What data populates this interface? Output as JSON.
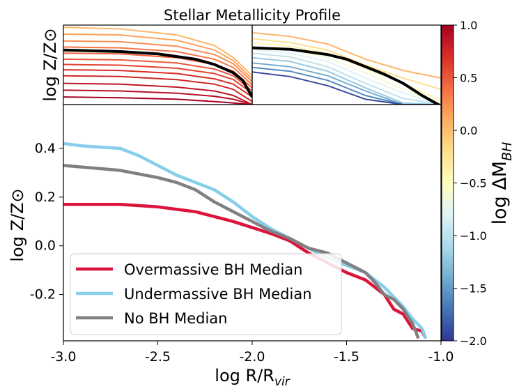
{
  "chart_data": [
    {
      "type": "line",
      "panel": "top-left inset",
      "title": "Stellar Metallicity Profile",
      "ylabel": "log Z/Z⊙",
      "xlim": [
        -3.0,
        -2.0
      ],
      "ylim": [
        -0.4,
        0.65
      ],
      "colormap": "RdYlBu_r",
      "individual_profiles": [
        {
          "dM": 1.0,
          "x": [
            -3.0,
            -2.7,
            -2.4,
            -2.2,
            -2.1,
            -2.0
          ],
          "y": [
            -0.3,
            -0.31,
            -0.33,
            -0.36,
            -0.38,
            -0.4
          ]
        },
        {
          "dM": 0.9,
          "x": [
            -3.0,
            -2.7,
            -2.4,
            -2.2,
            -2.1,
            -2.0
          ],
          "y": [
            -0.21,
            -0.22,
            -0.25,
            -0.29,
            -0.33,
            -0.4
          ]
        },
        {
          "dM": 0.85,
          "x": [
            -3.0,
            -2.7,
            -2.4,
            -2.2,
            -2.1,
            -2.0
          ],
          "y": [
            -0.12,
            -0.13,
            -0.17,
            -0.22,
            -0.28,
            -0.4
          ]
        },
        {
          "dM": 0.75,
          "x": [
            -3.0,
            -2.7,
            -2.4,
            -2.2,
            -2.1,
            -2.0
          ],
          "y": [
            -0.02,
            -0.03,
            -0.07,
            -0.13,
            -0.2,
            -0.36
          ]
        },
        {
          "dM": 0.7,
          "x": [
            -3.0,
            -2.7,
            -2.4,
            -2.2,
            -2.1,
            -2.0
          ],
          "y": [
            0.06,
            0.05,
            0.01,
            -0.06,
            -0.13,
            -0.3
          ]
        },
        {
          "dM": 0.6,
          "x": [
            -3.0,
            -2.7,
            -2.4,
            -2.2,
            -2.1,
            -2.0
          ],
          "y": [
            0.13,
            0.12,
            0.08,
            0.01,
            -0.07,
            -0.25
          ]
        },
        {
          "dM": 0.5,
          "x": [
            -3.0,
            -2.7,
            -2.4,
            -2.2,
            -2.1,
            -2.0
          ],
          "y": [
            0.2,
            0.19,
            0.15,
            0.07,
            -0.02,
            -0.22
          ]
        },
        {
          "dM": 0.45,
          "x": [
            -3.0,
            -2.7,
            -2.4,
            -2.2,
            -2.1,
            -2.0
          ],
          "y": [
            0.28,
            0.27,
            0.22,
            0.13,
            0.04,
            -0.18
          ]
        },
        {
          "dM": 0.35,
          "x": [
            -3.0,
            -2.7,
            -2.4,
            -2.2,
            -2.1,
            -2.0
          ],
          "y": [
            0.36,
            0.35,
            0.3,
            0.2,
            0.09,
            -0.14
          ]
        },
        {
          "dM": 0.25,
          "x": [
            -3.0,
            -2.7,
            -2.4,
            -2.2,
            -2.1,
            -2.0
          ],
          "y": [
            0.44,
            0.43,
            0.37,
            0.26,
            0.14,
            -0.1
          ]
        },
        {
          "dM": 0.15,
          "x": [
            -3.0,
            -2.7,
            -2.4,
            -2.2,
            -2.1,
            -2.0
          ],
          "y": [
            0.53,
            0.52,
            0.45,
            0.32,
            0.18,
            -0.06
          ]
        },
        {
          "dM": 0.05,
          "x": [
            -3.0,
            -2.7,
            -2.4,
            -2.2,
            -2.1,
            -2.0
          ],
          "y": [
            0.62,
            0.6,
            0.52,
            0.38,
            0.22,
            -0.02
          ]
        }
      ],
      "median": {
        "x": [
          -3.0,
          -2.7,
          -2.5,
          -2.3,
          -2.2,
          -2.1,
          -2.05,
          -2.0
        ],
        "y": [
          0.32,
          0.3,
          0.27,
          0.2,
          0.13,
          0.02,
          -0.08,
          -0.3
        ]
      }
    },
    {
      "type": "line",
      "panel": "top-right inset",
      "xlim": [
        -2.0,
        -1.0
      ],
      "ylim": [
        -0.4,
        0.65
      ],
      "colormap": "RdYlBu_r",
      "individual_profiles": [
        {
          "dM": 0.05,
          "x": [
            -2.0,
            -1.8,
            -1.6,
            -1.4,
            -1.2,
            -1.0
          ],
          "y": [
            0.55,
            0.5,
            0.4,
            0.2,
            0.05,
            -0.05
          ]
        },
        {
          "dM": -0.2,
          "x": [
            -2.0,
            -1.8,
            -1.6,
            -1.4,
            -1.2,
            -1.0
          ],
          "y": [
            0.47,
            0.42,
            0.32,
            0.12,
            -0.05,
            -0.2
          ]
        },
        {
          "dM": -0.4,
          "x": [
            -2.0,
            -1.8,
            -1.6,
            -1.4,
            -1.2,
            -1.0
          ],
          "y": [
            0.42,
            0.37,
            0.28,
            0.08,
            -0.12,
            -0.35
          ]
        },
        {
          "dM": -0.6,
          "x": [
            -2.0,
            -1.8,
            -1.6,
            -1.4,
            -1.2,
            -1.0
          ],
          "y": [
            0.37,
            0.33,
            0.22,
            0.02,
            -0.2,
            -0.4
          ]
        },
        {
          "dM": -0.8,
          "x": [
            -2.0,
            -1.8,
            -1.6,
            -1.4,
            -1.2,
            -1.0
          ],
          "y": [
            0.33,
            0.28,
            0.17,
            -0.05,
            -0.25,
            -0.4
          ]
        },
        {
          "dM": -1.0,
          "x": [
            -2.0,
            -1.8,
            -1.6,
            -1.4,
            -1.2,
            -1.0
          ],
          "y": [
            0.28,
            0.23,
            0.1,
            -0.12,
            -0.32,
            -0.4
          ]
        },
        {
          "dM": -1.2,
          "x": [
            -2.0,
            -1.8,
            -1.6,
            -1.4,
            -1.2,
            -1.0
          ],
          "y": [
            0.22,
            0.17,
            0.04,
            -0.18,
            -0.38,
            -0.4
          ]
        },
        {
          "dM": -1.4,
          "x": [
            -2.0,
            -1.8,
            -1.6,
            -1.4,
            -1.2,
            -1.0
          ],
          "y": [
            0.15,
            0.1,
            -0.02,
            -0.22,
            -0.4,
            -0.4
          ]
        },
        {
          "dM": -1.6,
          "x": [
            -2.0,
            -1.8,
            -1.6,
            -1.4,
            -1.2,
            -1.0
          ],
          "y": [
            0.09,
            0.04,
            -0.08,
            -0.28,
            -0.4,
            -0.4
          ]
        },
        {
          "dM": -1.9,
          "x": [
            -2.0,
            -1.8,
            -1.6,
            -1.4,
            -1.2,
            -1.0
          ],
          "y": [
            0.03,
            -0.03,
            -0.15,
            -0.33,
            -0.4,
            -0.4
          ]
        }
      ],
      "median": {
        "x": [
          -2.0,
          -1.8,
          -1.6,
          -1.5,
          -1.4,
          -1.3,
          -1.2,
          -1.1,
          -1.0
        ],
        "y": [
          0.35,
          0.33,
          0.26,
          0.2,
          0.1,
          0.0,
          -0.12,
          -0.28,
          -0.42
        ]
      }
    },
    {
      "type": "line",
      "panel": "main",
      "xlabel": "log R/R",
      "xlabel_sub": "vir",
      "ylabel": "log Z/Z⊙",
      "xlim": [
        -3.0,
        -1.0
      ],
      "ylim": [
        -0.39,
        0.58
      ],
      "xticks": [
        -3.0,
        -2.5,
        -2.0,
        -1.5,
        -1.0
      ],
      "xtick_labels": [
        "-3.0",
        "-2.5",
        "-2.0",
        "-1.5",
        "-1.0"
      ],
      "yticks": [
        0.4,
        0.2,
        0.0,
        -0.2
      ],
      "ytick_labels": [
        "0.4",
        "0.2",
        "0.0",
        "-0.2"
      ],
      "legend_position": "lower-left",
      "series": [
        {
          "name": "Overmassive BH Median",
          "color": "#dc143c",
          "x": [
            -3.0,
            -2.7,
            -2.5,
            -2.3,
            -2.1,
            -1.9,
            -1.8,
            -1.7,
            -1.6,
            -1.5,
            -1.4,
            -1.3,
            -1.25,
            -1.2,
            -1.15,
            -1.1,
            -1.08
          ],
          "y": [
            0.17,
            0.17,
            0.16,
            0.14,
            0.1,
            0.05,
            0.02,
            -0.03,
            -0.07,
            -0.11,
            -0.14,
            -0.2,
            -0.26,
            -0.28,
            -0.34,
            -0.35,
            -0.38
          ]
        },
        {
          "name": "Undermassive BH Median",
          "color": "#87ceeb",
          "x": [
            -3.0,
            -2.9,
            -2.7,
            -2.6,
            -2.5,
            -2.4,
            -2.3,
            -2.2,
            -2.1,
            -2.0,
            -1.9,
            -1.8,
            -1.7,
            -1.6,
            -1.5,
            -1.4,
            -1.35,
            -1.3,
            -1.25,
            -1.2,
            -1.15,
            -1.1,
            -1.08
          ],
          "y": [
            0.42,
            0.41,
            0.4,
            0.37,
            0.33,
            0.29,
            0.26,
            0.23,
            0.18,
            0.12,
            0.07,
            0.03,
            -0.01,
            -0.05,
            -0.08,
            -0.11,
            -0.14,
            -0.17,
            -0.21,
            -0.25,
            -0.3,
            -0.34,
            -0.38
          ]
        },
        {
          "name": "No BH Median",
          "color": "#808080",
          "x": [
            -3.0,
            -2.7,
            -2.5,
            -2.4,
            -2.3,
            -2.2,
            -2.1,
            -2.0,
            -1.9,
            -1.8,
            -1.7,
            -1.6,
            -1.5,
            -1.4,
            -1.35,
            -1.3,
            -1.25,
            -1.2,
            -1.15,
            -1.12
          ],
          "y": [
            0.33,
            0.31,
            0.28,
            0.26,
            0.23,
            0.18,
            0.14,
            0.1,
            0.06,
            0.03,
            -0.01,
            -0.03,
            -0.07,
            -0.11,
            -0.15,
            -0.2,
            -0.22,
            -0.26,
            -0.32,
            -0.38
          ]
        }
      ]
    },
    {
      "type": "colorbar",
      "label": "log ΔM",
      "label_sub": "BH",
      "range": [
        -2.0,
        1.0
      ],
      "ticks": [
        1.0,
        0.5,
        0.0,
        -0.5,
        -1.0,
        -1.5,
        -2.0
      ],
      "tick_labels": [
        "1.0",
        "0.5",
        "0.0",
        "−0.5",
        "−1.0",
        "−1.5",
        "−2.0"
      ],
      "colormap": "RdYlBu_r"
    }
  ],
  "colormap_stops": [
    "#313695",
    "#4575b4",
    "#74add1",
    "#abd9e9",
    "#e0f3f8",
    "#ffffbf",
    "#fee090",
    "#fdae61",
    "#f46d43",
    "#d73027",
    "#a50026"
  ]
}
